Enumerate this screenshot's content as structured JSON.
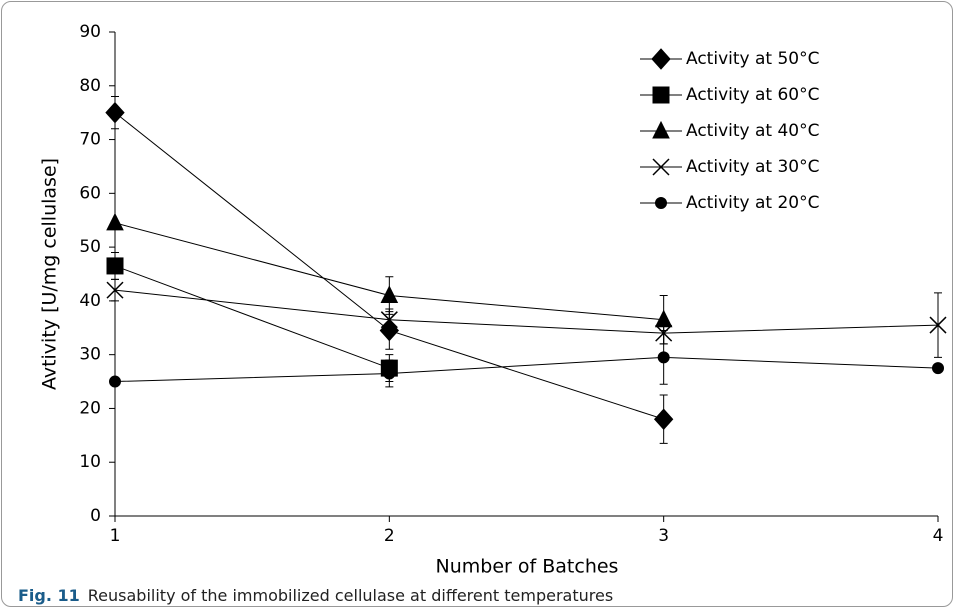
{
  "chart_data": {
    "type": "line",
    "x_label": "Number of Batches",
    "y_label": "Avtivity [U/mg cellulase]",
    "x": [
      1,
      2,
      3,
      4
    ],
    "xlim": [
      1,
      4
    ],
    "xticks": [
      1,
      2,
      3,
      4
    ],
    "ylim": [
      0,
      90
    ],
    "yticks": [
      0,
      10,
      20,
      30,
      40,
      50,
      60,
      70,
      80,
      90
    ],
    "legend": "top-right",
    "series": [
      {
        "name": "Activity at 50°C",
        "color": "#000000",
        "marker": "diamond",
        "values": [
          75,
          34.5,
          18,
          null
        ],
        "errors": [
          3,
          3.5,
          4.5,
          null
        ]
      },
      {
        "name": "Activity at 60°C",
        "color": "#000000",
        "marker": "square",
        "values": [
          46.5,
          27.5,
          null,
          null
        ],
        "errors": [
          2.5,
          2.5,
          null,
          null
        ]
      },
      {
        "name": "Activity at 40°C",
        "color": "#000000",
        "marker": "triangle",
        "values": [
          54.5,
          41,
          36.5,
          null
        ],
        "errors": [
          null,
          3.5,
          4.5,
          null
        ]
      },
      {
        "name": "Activity at 30°C",
        "color": "#000000",
        "marker": "x",
        "values": [
          42,
          36.5,
          34,
          35.5
        ],
        "errors": [
          2,
          2,
          2,
          6
        ]
      },
      {
        "name": "Activity at 20°C",
        "color": "#000000",
        "marker": "circle",
        "values": [
          25,
          26.5,
          29.5,
          27.5
        ],
        "errors": [
          null,
          2.5,
          5,
          null
        ]
      }
    ]
  },
  "caption": {
    "label": "Fig. 11",
    "text": "Reusability of the immobilized cellulase at different temperatures"
  }
}
